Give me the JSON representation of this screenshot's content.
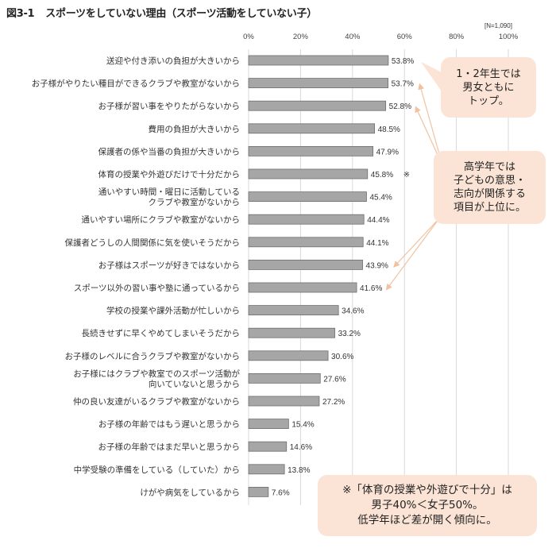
{
  "header": {
    "figure_number": "図3-1",
    "title": "スポーツをしていない理由（スポーツ活動をしていない子）",
    "sample_size": "[N=1,090]"
  },
  "chart_data": {
    "type": "bar",
    "orientation": "horizontal",
    "title": "スポーツをしていない理由（スポーツ活動をしていない子）",
    "xlabel": "",
    "ylabel": "",
    "xlim": [
      0,
      100
    ],
    "x_ticks": [
      "0%",
      "20%",
      "40%",
      "60%",
      "80%",
      "100%"
    ],
    "grid": true,
    "unit": "%",
    "categories": [
      "送迎や付き添いの負担が大きいから",
      "お子様がやりたい種目ができるクラブや教室がないから",
      "お子様が習い事をやりたがらないから",
      "費用の負担が大きいから",
      "保護者の係や当番の負担が大きいから",
      "体育の授業や外遊びだけで十分だから",
      "通いやすい時間・曜日に活動している\nクラブや教室がないから",
      "通いやすい場所にクラブや教室がないから",
      "保護者どうしの人間関係に気を使いそうだから",
      "お子様はスポーツが好きではないから",
      "スポーツ以外の習い事や塾に通っているから",
      "学校の授業や課外活動が忙しいから",
      "長続きせずに早くやめてしまいそうだから",
      "お子様のレベルに合うクラブや教室がないから",
      "お子様にはクラブや教室でのスポーツ活動が\n向いていないと思うから",
      "仲の良い友達がいるクラブや教室がないから",
      "お子様の年齢ではもう遅いと思うから",
      "お子様の年齢ではまだ早いと思うから",
      "中学受験の準備をしている（していた）から",
      "けがや病気をしているから"
    ],
    "values": [
      53.8,
      53.7,
      52.8,
      48.5,
      47.9,
      45.8,
      45.4,
      44.4,
      44.1,
      43.9,
      41.6,
      34.6,
      33.2,
      30.6,
      27.6,
      27.2,
      15.4,
      14.6,
      13.8,
      7.6
    ],
    "value_labels": [
      "53.8%",
      "53.7%",
      "52.8%",
      "48.5%",
      "47.9%",
      "45.8%",
      "45.4%",
      "44.4%",
      "44.1%",
      "43.9%",
      "41.6%",
      "34.6%",
      "33.2%",
      "30.6%",
      "27.6%",
      "27.2%",
      "15.4%",
      "14.6%",
      "13.8%",
      "7.6%"
    ],
    "value_label_marks": {
      "5": "※"
    },
    "bar_color": "#a6a6a6",
    "annotations": [
      {
        "text": "1・2年生では\n男女ともに\nトップ。",
        "points_to": [
          0
        ]
      },
      {
        "text": "高学年では\n子どもの意思・\n志向が関係する\n項目が上位に。",
        "points_to": [
          1,
          2,
          9,
          10
        ]
      },
      {
        "text": "※「体育の授業や外遊びで十分」は\n男子40%＜女子50%。\n低学年ほど差が開く傾向に。",
        "points_to": []
      }
    ]
  },
  "colors": {
    "bar": "#a6a6a6",
    "bar_border": "#6e6e6e",
    "callout_fill": "#fbe4d5",
    "arrow": "#f0c2a0",
    "grid": "#d9d9d9"
  }
}
